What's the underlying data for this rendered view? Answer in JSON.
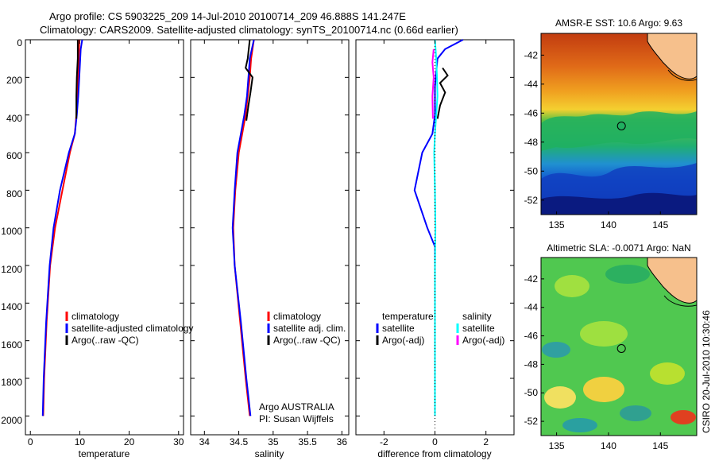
{
  "header": {
    "line1": "Argo profile: CS 5903225_209 14-Jul-2010 20100714_209 46.888S 141.247E",
    "line2": "Climatology: CARS2009. Satellite-adjusted climatology: synTS_20100714.nc (0.66d earlier)"
  },
  "side_label": "CSIRO 20-Jul-2010 10:30:46",
  "colors": {
    "clim": "#ff0000",
    "sat": "#0000ff",
    "argo": "#000000",
    "sat_sal": "#00ffff",
    "argo_sal": "#ff00ff"
  },
  "chart_data": [
    {
      "type": "line",
      "name": "temperature-profile",
      "xlabel": "temperature",
      "ylabel": "",
      "xlim": [
        -1,
        31
      ],
      "ylim": [
        2100,
        0
      ],
      "xticks": [
        0,
        10,
        20,
        30
      ],
      "yticks": [
        0,
        200,
        400,
        600,
        800,
        1000,
        1200,
        1400,
        1600,
        1800,
        2000
      ],
      "legend": [
        "climatology",
        "satellite-adjusted climatology",
        "Argo(..raw -QC)"
      ],
      "series": [
        {
          "name": "climatology",
          "color": "#ff0000",
          "x": [
            9.9,
            9.8,
            9.7,
            9.5,
            9.3,
            9.0,
            8.0,
            6.5,
            5.0,
            4.0,
            3.3,
            2.8,
            2.6
          ],
          "y": [
            0,
            100,
            200,
            300,
            400,
            500,
            600,
            800,
            1000,
            1200,
            1500,
            1800,
            2000
          ]
        },
        {
          "name": "satellite-adjusted climatology",
          "color": "#0000ff",
          "x": [
            10.5,
            10.2,
            9.9,
            9.7,
            9.4,
            9.0,
            7.8,
            6.0,
            4.7,
            3.9,
            3.2,
            2.7,
            2.5
          ],
          "y": [
            0,
            50,
            200,
            300,
            400,
            500,
            600,
            800,
            1000,
            1200,
            1500,
            1800,
            2000
          ]
        },
        {
          "name": "Argo(..raw -QC)",
          "color": "#000000",
          "x": [
            9.6,
            9.6,
            9.4,
            9.3,
            9.3
          ],
          "y": [
            0,
            100,
            200,
            300,
            420
          ]
        }
      ]
    },
    {
      "type": "line",
      "name": "salinity-profile",
      "xlabel": "salinity",
      "xlim": [
        33.8,
        36.1
      ],
      "ylim": [
        2100,
        0
      ],
      "xticks": [
        34,
        34.5,
        35,
        35.5,
        36
      ],
      "xticklabels": [
        "34",
        "34.5",
        "35",
        "35.5",
        "36"
      ],
      "legend": [
        "climatology",
        "satellite adj. clim.",
        "Argo(..raw -QC)"
      ],
      "annotation": [
        "Argo AUSTRALIA",
        "PI: Susan Wijffels"
      ],
      "series": [
        {
          "name": "climatology",
          "color": "#ff0000",
          "x": [
            34.72,
            34.68,
            34.66,
            34.63,
            34.6,
            34.55,
            34.5,
            34.45,
            34.42,
            34.44,
            34.52,
            34.6,
            34.66
          ],
          "y": [
            0,
            100,
            200,
            300,
            400,
            500,
            600,
            800,
            1000,
            1200,
            1500,
            1800,
            2000
          ]
        },
        {
          "name": "satellite adj. clim.",
          "color": "#0000ff",
          "x": [
            34.72,
            34.66,
            34.64,
            34.62,
            34.58,
            34.53,
            34.48,
            34.44,
            34.41,
            34.44,
            34.53,
            34.61,
            34.67
          ],
          "y": [
            0,
            100,
            200,
            300,
            400,
            500,
            600,
            800,
            1000,
            1200,
            1500,
            1800,
            2000
          ]
        },
        {
          "name": "Argo(..raw -QC)",
          "color": "#000000",
          "x": [
            34.66,
            34.63,
            34.6,
            34.7,
            34.67,
            34.64,
            34.61
          ],
          "y": [
            0,
            100,
            150,
            200,
            280,
            350,
            430
          ]
        }
      ]
    },
    {
      "type": "line",
      "name": "difference-profile",
      "xlabel": "difference from climatology",
      "xlim": [
        -3.1,
        3.1
      ],
      "ylim": [
        2100,
        0
      ],
      "xticks": [
        -2,
        0,
        2
      ],
      "legend_left": [
        "temperature",
        "satellite",
        "Argo(-adj)"
      ],
      "legend_right": [
        "salinity",
        "satellite",
        "Argo(-adj)"
      ],
      "series": [
        {
          "name": "temperature satellite",
          "color": "#0000ff",
          "x": [
            1.1,
            0.4,
            0.1,
            0.0,
            0.0,
            -0.1,
            -0.5,
            -0.8,
            -0.3,
            0.0,
            0.0,
            0.0,
            0.0
          ],
          "y": [
            0,
            50,
            100,
            250,
            400,
            500,
            600,
            800,
            1000,
            1100,
            1400,
            1800,
            2000
          ]
        },
        {
          "name": "temperature Argo(-adj)",
          "color": "#000000",
          "x": [
            0.3,
            0.5,
            0.2,
            0.4,
            0.2,
            0.1
          ],
          "y": [
            150,
            190,
            230,
            280,
            350,
            420
          ]
        },
        {
          "name": "salinity satellite",
          "color": "#00ffff",
          "x": [
            0.0,
            0.05,
            0.08,
            0.1,
            0.05,
            0.0,
            -0.03,
            0.0,
            0.02,
            0.0,
            0.0,
            0.0
          ],
          "y": [
            0,
            100,
            200,
            300,
            400,
            500,
            600,
            800,
            1000,
            1200,
            1600,
            2000
          ]
        },
        {
          "name": "salinity Argo(-adj)",
          "color": "#ff00ff",
          "x": [
            -0.05,
            -0.1,
            -0.05,
            -0.1,
            -0.08
          ],
          "y": [
            50,
            120,
            200,
            300,
            420
          ]
        }
      ]
    }
  ],
  "maps": [
    {
      "name": "sst-map",
      "title": "AMSR-E SST: 10.6 Argo: 9.63",
      "xticks": [
        135,
        140,
        145
      ],
      "yticks": [
        -42,
        -44,
        -46,
        -48,
        -50,
        -52
      ],
      "xlim": [
        133.5,
        148.5
      ],
      "ylim": [
        -53,
        -40.5
      ],
      "marker": {
        "lon": 141.247,
        "lat": -46.888
      }
    },
    {
      "name": "sla-map",
      "title": "Altimetric SLA: -0.0071 Argo: NaN",
      "xticks": [
        135,
        140,
        145
      ],
      "yticks": [
        -42,
        -44,
        -46,
        -48,
        -50,
        -52
      ],
      "xlim": [
        133.5,
        148.5
      ],
      "ylim": [
        -53,
        -40.5
      ],
      "marker": {
        "lon": 141.247,
        "lat": -46.888
      }
    }
  ]
}
